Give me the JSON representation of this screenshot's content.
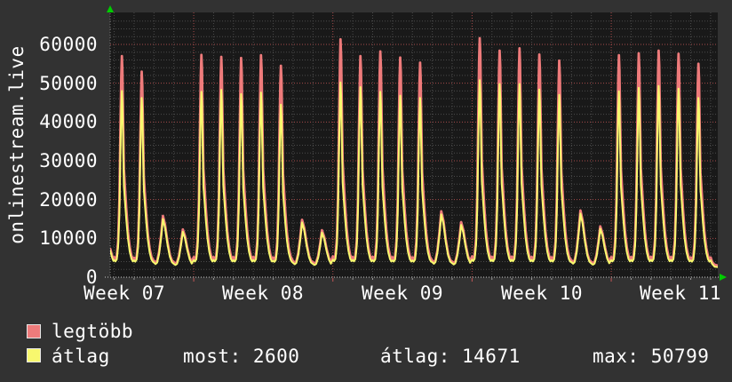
{
  "chart_data": {
    "type": "line",
    "vertical_label": "onlinestream.live",
    "grid": "on",
    "legend_position": "bottom-left",
    "colors": {
      "background": "#323232",
      "plot_background": "#191919",
      "grid_minor": "#4b4b4b",
      "grid_major": "#a84b4b",
      "axis_x": "#cccccc",
      "axis_y": "#777777",
      "tick_day": "#999999",
      "tick_week": "#c05555",
      "arrow": "#00cc00",
      "text": "#ffffff"
    },
    "y_axis": {
      "min": 0,
      "max_tick": 60000,
      "major_step": 10000,
      "minor_step": 2000,
      "top_value": 68200
    },
    "y_ticks": [
      {
        "value": 60000,
        "label": "60000"
      },
      {
        "value": 50000,
        "label": "50000"
      },
      {
        "value": 40000,
        "label": "40000"
      },
      {
        "value": 30000,
        "label": "30000"
      },
      {
        "value": 20000,
        "label": "20000"
      },
      {
        "value": 10000,
        "label": "10000"
      },
      {
        "value": 0,
        "label": "0"
      }
    ],
    "x_axis": {
      "days_total": 30,
      "week_start_days": [
        4,
        11,
        18,
        25
      ],
      "left_edge_day": -0.2,
      "right_edge_day": 30.36,
      "weeks": [
        {
          "label": "Week 07",
          "center_day": 0.5
        },
        {
          "label": "Week 08",
          "center_day": 7.5
        },
        {
          "label": "Week 09",
          "center_day": 14.5
        },
        {
          "label": "Week 10",
          "center_day": 21.5
        },
        {
          "label": "Week 11",
          "center_day": 28.5
        }
      ]
    },
    "small_threshold": 20000,
    "day_profile_tall": [
      [
        0,
        0.042
      ],
      [
        0.06,
        0.034
      ],
      [
        0.13,
        0.046
      ],
      [
        0.2,
        0.12
      ],
      [
        0.26,
        0.31
      ],
      [
        0.31,
        0.64
      ],
      [
        0.355,
        0.9
      ],
      [
        0.385,
        1.0
      ],
      [
        0.415,
        0.93
      ],
      [
        0.45,
        0.7
      ],
      [
        0.49,
        0.46
      ],
      [
        0.54,
        0.38
      ],
      [
        0.61,
        0.27
      ],
      [
        0.69,
        0.165
      ],
      [
        0.78,
        0.09
      ],
      [
        0.87,
        0.048
      ],
      [
        0.94,
        0.034
      ],
      [
        1,
        0.042
      ]
    ],
    "day_profile_small": [
      [
        0,
        0.1
      ],
      [
        0.08,
        0.07
      ],
      [
        0.16,
        0.1
      ],
      [
        0.26,
        0.28
      ],
      [
        0.36,
        0.62
      ],
      [
        0.45,
        1.0
      ],
      [
        0.56,
        0.82
      ],
      [
        0.68,
        0.48
      ],
      [
        0.8,
        0.22
      ],
      [
        0.9,
        0.11
      ],
      [
        1,
        0.1
      ]
    ],
    "series": [
      {
        "name": "legtöbb",
        "color": "#ee7b7b",
        "base": 2900,
        "peaks": [
          57000,
          53000,
          15800,
          12300,
          57300,
          56800,
          56500,
          57200,
          54500,
          14800,
          12100,
          61300,
          57000,
          58200,
          56600,
          55300,
          17000,
          14200,
          61600,
          58400,
          59000,
          57400,
          55800,
          17200,
          13100,
          57200,
          57700,
          58400,
          57600,
          55000
        ],
        "lead": [
          [
            -0.2,
            7300
          ],
          [
            -0.1,
            5400
          ],
          [
            -0.04,
            4600
          ]
        ],
        "tail": [
          [
            30.08,
            3900
          ],
          [
            30.2,
            3200
          ],
          [
            30.36,
            3000
          ]
        ]
      },
      {
        "name": "átlag",
        "color": "#f8f86e",
        "base": 2500,
        "peaks": [
          48000,
          46200,
          15000,
          11700,
          47800,
          48300,
          47200,
          47600,
          44500,
          14100,
          11500,
          50200,
          49000,
          47800,
          46800,
          46200,
          16200,
          13500,
          50799,
          49800,
          49800,
          48400,
          47000,
          16400,
          12500,
          47900,
          48800,
          49300,
          48600,
          46200
        ],
        "lead": [
          [
            -0.2,
            6800
          ],
          [
            -0.1,
            5000
          ],
          [
            -0.04,
            4200
          ]
        ],
        "tail": [
          [
            30.08,
            3400
          ],
          [
            30.2,
            2700
          ],
          [
            30.36,
            2600
          ]
        ]
      }
    ]
  },
  "legend": [
    {
      "label": "legtöbb",
      "color": "#ee7b7b"
    },
    {
      "label": "átlag",
      "color": "#f8f86e"
    }
  ],
  "stats": [
    {
      "label": "most:",
      "value": "2600"
    },
    {
      "label": "átlag:",
      "value": "14671"
    },
    {
      "label": "max:",
      "value": "50799"
    }
  ]
}
